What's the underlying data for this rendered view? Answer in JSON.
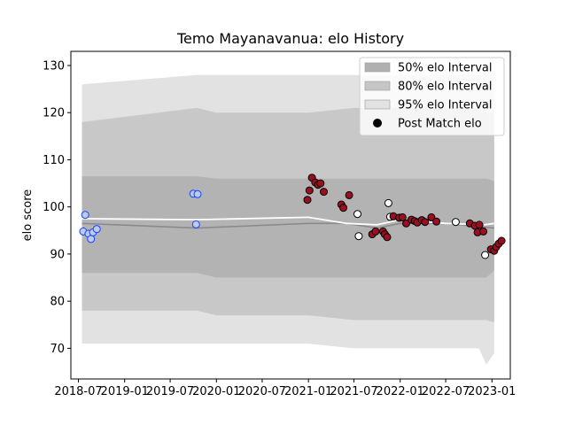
{
  "chart_data": {
    "type": "line",
    "title": "Temo Mayanavanua: elo History",
    "xlabel": "",
    "ylabel": "elo score",
    "xlim": [
      "2018-06-01",
      "2023-03-15"
    ],
    "ylim": [
      63.5,
      133
    ],
    "xticks": [
      "2018-07",
      "2019-01",
      "2019-07",
      "2020-01",
      "2020-07",
      "2021-01",
      "2021-07",
      "2022-01",
      "2022-07",
      "2023-01"
    ],
    "yticks": [
      70,
      80,
      90,
      100,
      110,
      120,
      130
    ],
    "grid": false,
    "legend_position": "top-right",
    "legend": [
      {
        "label": "50% elo Interval",
        "kind": "band",
        "color": "#b0b0b0"
      },
      {
        "label": "80% elo Interval",
        "kind": "band",
        "color": "#c6c6c6"
      },
      {
        "label": "95% elo Interval",
        "kind": "band",
        "color": "#e2e2e2"
      },
      {
        "label": "Post Match elo",
        "kind": "marker",
        "color": "#000000"
      }
    ],
    "colors": {
      "band_50": "#b3b3b3",
      "band_80": "#c8c8c8",
      "band_95": "#e2e2e2",
      "median_line": "#8a8a8a",
      "mean_line": "#ffffff",
      "marker_blue_edge": "#1f3fff",
      "marker_blue_fill": "#b8ccf0",
      "marker_red_fill": "#9a1020",
      "marker_black_edge": "#000000",
      "marker_white_fill": "#ffffff"
    },
    "bands": {
      "x": [
        "2018-07-15",
        "2019-10-15",
        "2020-01-01",
        "2021-01-01",
        "2021-07-01",
        "2022-01-01",
        "2022-07-01",
        "2022-11-10",
        "2022-12-10",
        "2023-01-10"
      ],
      "p95_upper": [
        126,
        128,
        128,
        128,
        128,
        128,
        128,
        128,
        128,
        128
      ],
      "p95_lower": [
        71,
        71,
        71,
        71,
        70,
        70,
        70,
        70,
        66.5,
        69
      ],
      "p80_upper": [
        118,
        121,
        120,
        120,
        121,
        121,
        121,
        121,
        120,
        120
      ],
      "p80_lower": [
        78,
        78,
        77,
        77,
        76,
        76,
        76,
        76,
        76,
        75.5
      ],
      "p50_upper": [
        106.5,
        106.5,
        106,
        106,
        106,
        106,
        106,
        106,
        106,
        105.5
      ],
      "p50_lower": [
        86,
        86,
        85,
        85,
        85,
        85,
        85,
        85,
        85,
        86.5
      ]
    },
    "series": [
      {
        "kind": "median_line",
        "x": [
          "2018-07-15",
          "2019-10-15",
          "2021-01-01",
          "2021-06-01",
          "2021-10-01",
          "2022-01-01",
          "2022-07-01",
          "2023-01-10"
        ],
        "values": [
          96.5,
          95.5,
          96.5,
          96.5,
          95.5,
          96.5,
          96.5,
          95.5
        ]
      },
      {
        "kind": "mean_line",
        "x": [
          "2018-07-15",
          "2019-10-15",
          "2021-01-01",
          "2021-06-01",
          "2021-10-01",
          "2022-01-01",
          "2022-07-01",
          "2022-12-01",
          "2023-01-10"
        ],
        "values": [
          97.5,
          97.3,
          97.8,
          96.5,
          96.2,
          97.3,
          96.5,
          96.2,
          96.5
        ]
      },
      {
        "name": "Post Match elo",
        "kind": "points",
        "points": [
          {
            "x": "2018-07-20",
            "y": 94.8,
            "style": "blue"
          },
          {
            "x": "2018-07-28",
            "y": 98.3,
            "style": "blue"
          },
          {
            "x": "2018-08-10",
            "y": 94.3,
            "style": "blue"
          },
          {
            "x": "2018-08-20",
            "y": 93.2,
            "style": "blue"
          },
          {
            "x": "2018-08-28",
            "y": 94.6,
            "style": "blue"
          },
          {
            "x": "2018-09-12",
            "y": 95.3,
            "style": "blue"
          },
          {
            "x": "2019-10-01",
            "y": 102.8,
            "style": "blue"
          },
          {
            "x": "2019-10-12",
            "y": 96.3,
            "style": "blue"
          },
          {
            "x": "2019-10-18",
            "y": 102.7,
            "style": "blue"
          },
          {
            "x": "2020-12-28",
            "y": 101.5,
            "style": "red"
          },
          {
            "x": "2021-01-05",
            "y": 103.5,
            "style": "red"
          },
          {
            "x": "2021-01-15",
            "y": 106.2,
            "style": "red"
          },
          {
            "x": "2021-01-28",
            "y": 105.2,
            "style": "red"
          },
          {
            "x": "2021-02-08",
            "y": 104.7,
            "style": "red"
          },
          {
            "x": "2021-02-18",
            "y": 105.0,
            "style": "red"
          },
          {
            "x": "2021-03-03",
            "y": 103.2,
            "style": "red"
          },
          {
            "x": "2021-05-12",
            "y": 100.5,
            "style": "red"
          },
          {
            "x": "2021-05-20",
            "y": 99.8,
            "style": "red"
          },
          {
            "x": "2021-06-12",
            "y": 102.5,
            "style": "red"
          },
          {
            "x": "2021-07-15",
            "y": 98.5,
            "style": "white"
          },
          {
            "x": "2021-07-20",
            "y": 93.8,
            "style": "white"
          },
          {
            "x": "2021-09-12",
            "y": 94.2,
            "style": "red"
          },
          {
            "x": "2021-09-25",
            "y": 94.8,
            "style": "red"
          },
          {
            "x": "2021-10-25",
            "y": 94.8,
            "style": "red"
          },
          {
            "x": "2021-11-01",
            "y": 94.2,
            "style": "red"
          },
          {
            "x": "2021-11-10",
            "y": 93.6,
            "style": "red"
          },
          {
            "x": "2021-11-15",
            "y": 100.8,
            "style": "white"
          },
          {
            "x": "2021-11-22",
            "y": 97.9,
            "style": "white"
          },
          {
            "x": "2021-12-05",
            "y": 98.0,
            "style": "red"
          },
          {
            "x": "2021-12-28",
            "y": 97.7,
            "style": "red"
          },
          {
            "x": "2022-01-10",
            "y": 97.8,
            "style": "red"
          },
          {
            "x": "2022-01-25",
            "y": 96.5,
            "style": "red"
          },
          {
            "x": "2022-02-15",
            "y": 97.3,
            "style": "red"
          },
          {
            "x": "2022-02-28",
            "y": 97.0,
            "style": "red"
          },
          {
            "x": "2022-03-10",
            "y": 96.7,
            "style": "red"
          },
          {
            "x": "2022-03-28",
            "y": 97.2,
            "style": "red"
          },
          {
            "x": "2022-04-10",
            "y": 96.8,
            "style": "red"
          },
          {
            "x": "2022-05-05",
            "y": 97.8,
            "style": "red"
          },
          {
            "x": "2022-05-25",
            "y": 96.9,
            "style": "red"
          },
          {
            "x": "2022-08-10",
            "y": 96.8,
            "style": "white"
          },
          {
            "x": "2022-10-05",
            "y": 96.5,
            "style": "red"
          },
          {
            "x": "2022-10-25",
            "y": 96.0,
            "style": "red"
          },
          {
            "x": "2022-11-05",
            "y": 94.6,
            "style": "red"
          },
          {
            "x": "2022-11-12",
            "y": 96.2,
            "style": "red"
          },
          {
            "x": "2022-11-28",
            "y": 94.8,
            "style": "red"
          },
          {
            "x": "2022-12-05",
            "y": 89.8,
            "style": "white"
          },
          {
            "x": "2022-12-28",
            "y": 91.0,
            "style": "red"
          },
          {
            "x": "2023-01-10",
            "y": 90.7,
            "style": "red"
          },
          {
            "x": "2023-01-18",
            "y": 91.5,
            "style": "red"
          },
          {
            "x": "2023-01-28",
            "y": 92.2,
            "style": "red"
          },
          {
            "x": "2023-02-08",
            "y": 92.8,
            "style": "red"
          }
        ]
      }
    ]
  }
}
